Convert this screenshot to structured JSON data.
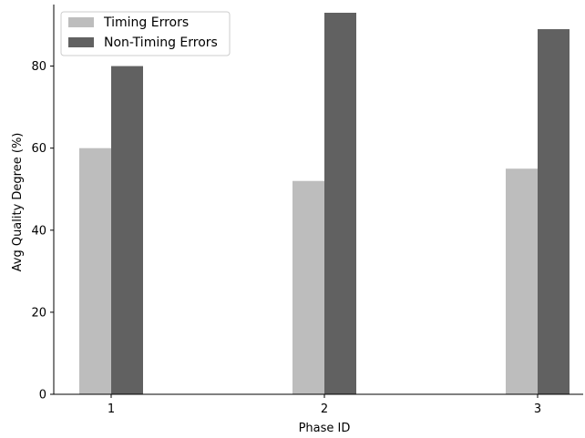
{
  "chart_data": {
    "type": "bar",
    "categories": [
      "1",
      "2",
      "3"
    ],
    "series": [
      {
        "name": "Timing Errors",
        "values": [
          60,
          52,
          55
        ],
        "color": "#bdbdbd"
      },
      {
        "name": "Non-Timing Errors",
        "values": [
          80,
          93,
          89
        ],
        "color": "#616161"
      }
    ],
    "xlabel": "Phase ID",
    "ylabel": "Avg Quality Degree (%)",
    "ylim": [
      0,
      95
    ],
    "yticks": [
      "0",
      "20",
      "40",
      "60",
      "80"
    ],
    "grid": false,
    "legend_position": "top-left"
  }
}
